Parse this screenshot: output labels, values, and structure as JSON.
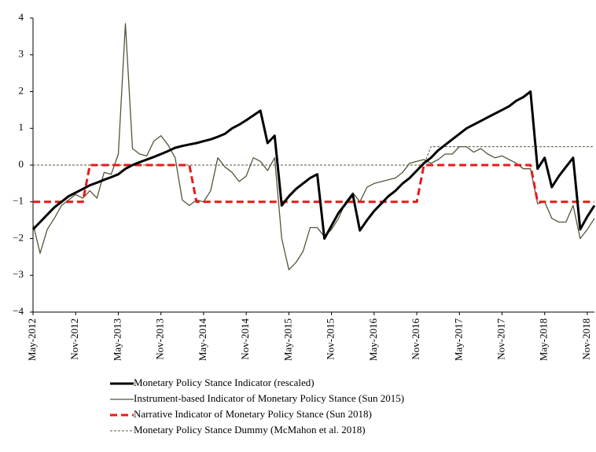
{
  "chart_data": {
    "type": "line",
    "categories": [
      "May-2012",
      null,
      null,
      null,
      null,
      null,
      "Nov-2012",
      null,
      null,
      null,
      null,
      null,
      "May-2013",
      null,
      null,
      null,
      null,
      null,
      "Nov-2013",
      null,
      null,
      null,
      null,
      null,
      "May-2014",
      null,
      null,
      null,
      null,
      null,
      "Nov-2014",
      null,
      null,
      null,
      null,
      null,
      "May-2015",
      null,
      null,
      null,
      null,
      null,
      "Nov-2015",
      null,
      null,
      null,
      null,
      null,
      "May-2016",
      null,
      null,
      null,
      null,
      null,
      "Nov-2016",
      null,
      null,
      null,
      null,
      null,
      "May-2017",
      null,
      null,
      null,
      null,
      null,
      "Nov-2017",
      null,
      null,
      null,
      null,
      null,
      "May-2018",
      null,
      null,
      null,
      null,
      null,
      "Nov-2018",
      null
    ],
    "ylim": [
      -4,
      4
    ],
    "yticks": [
      {
        "value": -4,
        "label": "−4"
      },
      {
        "value": -3,
        "label": "−3"
      },
      {
        "value": -2,
        "label": "−2"
      },
      {
        "value": -1,
        "label": "−1"
      },
      0,
      1,
      2,
      3,
      4
    ],
    "series": [
      {
        "name": "Monetary Policy Stance Indicator (rescaled)",
        "color": "#000000",
        "style": "solid",
        "width": 3,
        "values": [
          -1.75,
          -1.55,
          -1.35,
          -1.15,
          -1.0,
          -0.85,
          -0.75,
          -0.65,
          -0.55,
          -0.48,
          -0.4,
          -0.33,
          -0.25,
          -0.1,
          0.0,
          0.08,
          0.15,
          0.22,
          0.3,
          0.38,
          0.47,
          0.52,
          0.56,
          0.6,
          0.65,
          0.7,
          0.77,
          0.85,
          1.0,
          1.1,
          1.22,
          1.35,
          1.48,
          0.6,
          0.8,
          -1.1,
          -0.85,
          -0.65,
          -0.5,
          -0.35,
          -0.25,
          -2.0,
          -1.65,
          -1.3,
          -1.05,
          -0.8,
          -1.78,
          -1.5,
          -1.25,
          -1.05,
          -0.85,
          -0.7,
          -0.5,
          -0.35,
          -0.15,
          0.05,
          0.2,
          0.4,
          0.55,
          0.7,
          0.85,
          1.0,
          1.1,
          1.2,
          1.3,
          1.4,
          1.5,
          1.6,
          1.75,
          1.85,
          2.0,
          -0.1,
          0.2,
          -0.6,
          -0.3,
          -0.05,
          0.2,
          -1.75,
          -1.4,
          -1.1
        ]
      },
      {
        "name": "Instrument-based Indicator of Monetary Policy Stance (Sun 2015)",
        "color": "#55553a",
        "style": "solid",
        "width": 1.3,
        "values": [
          -1.6,
          -2.4,
          -1.75,
          -1.45,
          -1.1,
          -0.95,
          -0.8,
          -0.9,
          -0.7,
          -0.9,
          -0.2,
          -0.25,
          0.3,
          3.85,
          0.45,
          0.3,
          0.25,
          0.65,
          0.8,
          0.55,
          0.2,
          -0.95,
          -1.1,
          -0.95,
          -1.0,
          -0.7,
          0.2,
          -0.05,
          -0.2,
          -0.45,
          -0.3,
          0.2,
          0.1,
          -0.15,
          0.2,
          -2.0,
          -2.85,
          -2.65,
          -2.35,
          -1.7,
          -1.7,
          -1.95,
          -1.75,
          -1.45,
          -1.0,
          -0.75,
          -1.0,
          -0.6,
          -0.5,
          -0.45,
          -0.4,
          -0.35,
          -0.2,
          0.05,
          0.1,
          0.15,
          0.05,
          0.15,
          0.3,
          0.3,
          0.5,
          0.5,
          0.35,
          0.45,
          0.3,
          0.2,
          0.25,
          0.15,
          0.05,
          -0.1,
          -0.1,
          -1.05,
          -1.0,
          -1.45,
          -1.55,
          -1.55,
          -1.1,
          -2.0,
          -1.75,
          -1.45
        ]
      },
      {
        "name": "Narrative Indicator of Monetary Policy Stance (Sun 2018)",
        "color": "#e8191a",
        "style": "dashed",
        "width": 3,
        "values": [
          -1,
          -1,
          -1,
          -1,
          -1,
          -1,
          -1,
          -1,
          0,
          0,
          0,
          0,
          0,
          0,
          0,
          0,
          0,
          0,
          0,
          0,
          0,
          0,
          0,
          -1,
          -1,
          -1,
          -1,
          -1,
          -1,
          -1,
          -1,
          -1,
          -1,
          -1,
          -1,
          -1,
          -1,
          -1,
          -1,
          -1,
          -1,
          -1,
          -1,
          -1,
          -1,
          -1,
          -1,
          -1,
          -1,
          -1,
          -1,
          -1,
          -1,
          -1,
          -1,
          0,
          0,
          0,
          0,
          0,
          0,
          0,
          0,
          0,
          0,
          0,
          0,
          0,
          0,
          0,
          0,
          -1,
          -1,
          -1,
          -1,
          -1,
          -1,
          -1,
          -1,
          -1
        ]
      },
      {
        "name": "Monetary Policy Stance Dummy (McMahon et al. 2018)",
        "color": "#55553a",
        "style": "dotted",
        "width": 1,
        "values": [
          0,
          0,
          0,
          0,
          0,
          0,
          0,
          0,
          0,
          0,
          0,
          0,
          0,
          0,
          0,
          0,
          0,
          0,
          0,
          0,
          0,
          0,
          0,
          0,
          0,
          0,
          0,
          0,
          0,
          0,
          0,
          0,
          0,
          0,
          0,
          0,
          0,
          0,
          0,
          0,
          0,
          0,
          0,
          0,
          0,
          0,
          0,
          0,
          0,
          0,
          0,
          0,
          0,
          0,
          0,
          0,
          0.5,
          0.5,
          0.5,
          0.5,
          0.5,
          0.5,
          0.5,
          0.5,
          0.5,
          0.5,
          0.5,
          0.5,
          0.5,
          0.5,
          0.5,
          0.5,
          0.5,
          0.5,
          0.5,
          0.5,
          0.5,
          0.5,
          0.5,
          0.5
        ]
      }
    ]
  }
}
